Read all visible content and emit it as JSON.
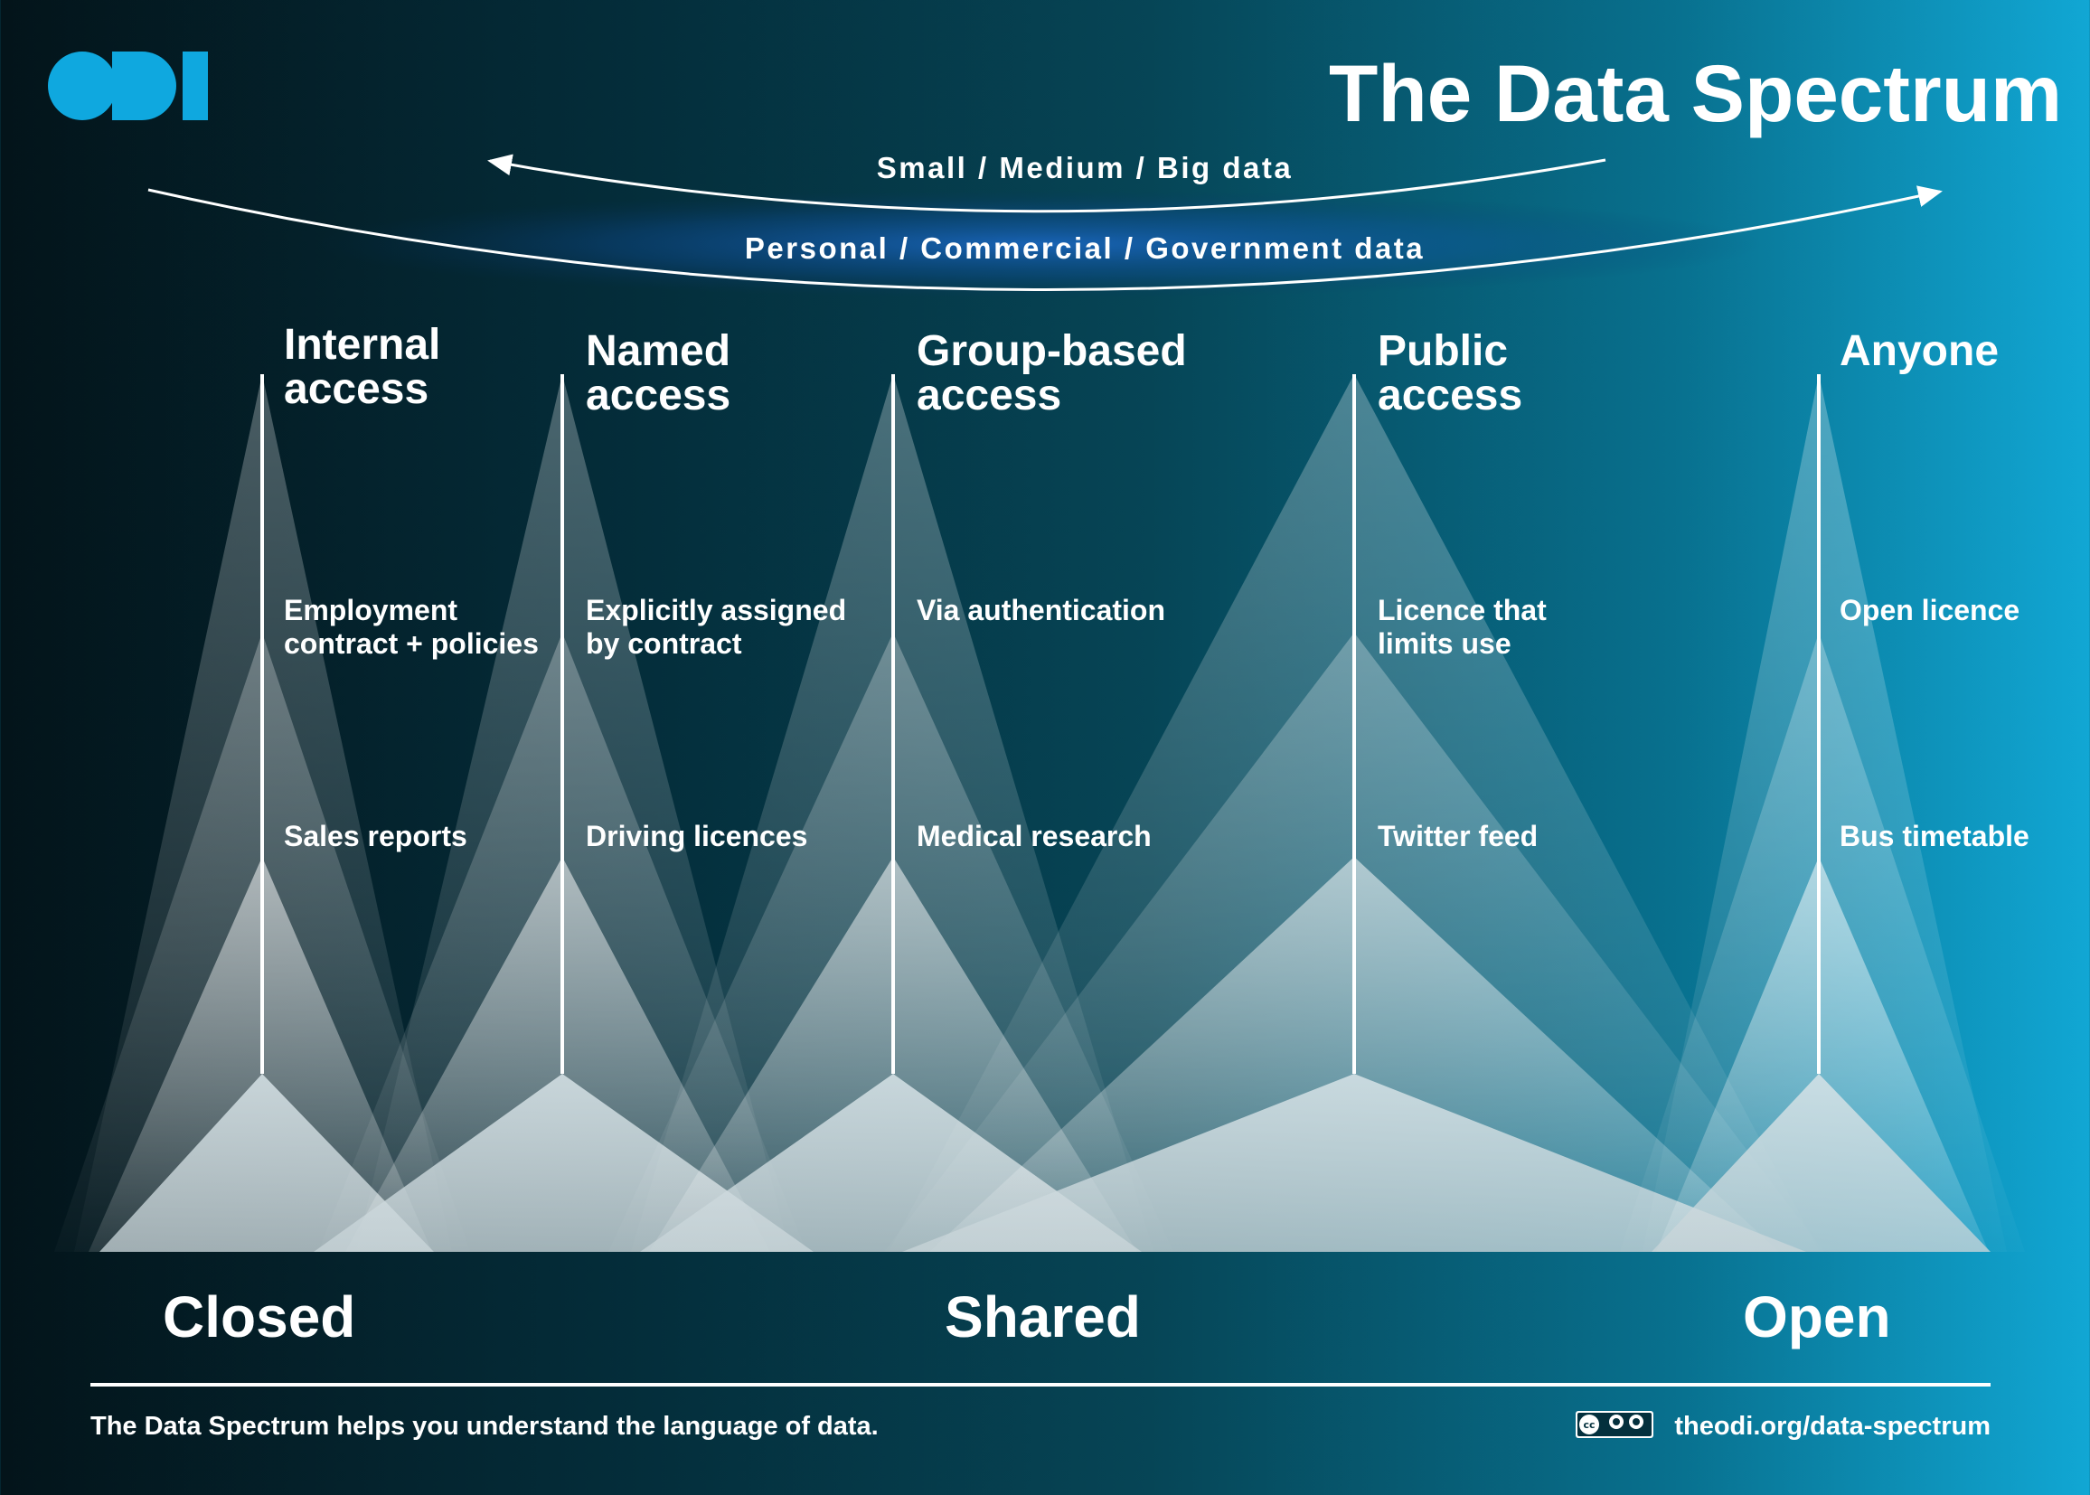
{
  "brand": {
    "logo_text": "ODI",
    "logo_color": "#0fa8df"
  },
  "title": "The Data Spectrum",
  "arcs": {
    "size_label": "Small  /  Medium  /  Big data",
    "type_label": "Personal  /  Commercial  /  Government data"
  },
  "columns": [
    {
      "title_line1": "Internal",
      "title_line2": "access",
      "condition_line1": "Employment",
      "condition_line2": "contract + policies",
      "example": "Sales reports"
    },
    {
      "title_line1": "Named",
      "title_line2": "access",
      "condition_line1": "Explicitly assigned",
      "condition_line2": "by contract",
      "example": "Driving licences"
    },
    {
      "title_line1": "Group-based",
      "title_line2": "access",
      "condition_line1": "Via authentication",
      "condition_line2": "",
      "example": "Medical research"
    },
    {
      "title_line1": "Public",
      "title_line2": "access",
      "condition_line1": "Licence that",
      "condition_line2": "limits use",
      "example": "Twitter feed"
    },
    {
      "title_line1": "Anyone",
      "title_line2": "",
      "condition_line1": "Open licence",
      "condition_line2": "",
      "example": "Bus timetable"
    }
  ],
  "axis": {
    "closed": "Closed",
    "shared": "Shared",
    "open": "Open"
  },
  "footer": {
    "tagline": "The Data Spectrum helps you understand the language of data.",
    "url": "theodi.org/data-spectrum",
    "license_icon": "cc-by-sa-icon"
  }
}
